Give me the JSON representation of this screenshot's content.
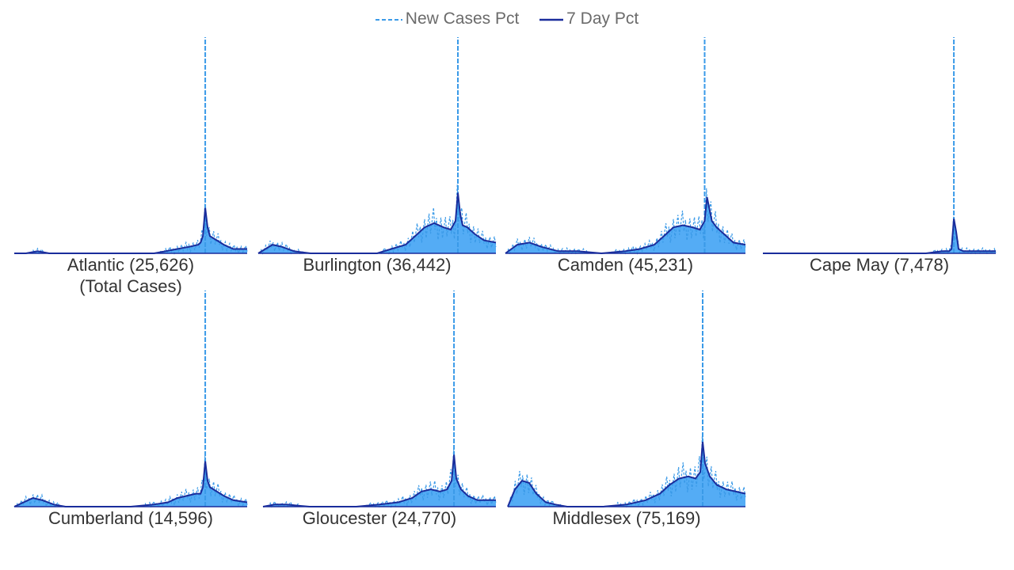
{
  "legend": {
    "dashed_label": "New Cases Pct",
    "solid_label": "7 Day Pct"
  },
  "colors": {
    "new_cases": "#3a9ae8",
    "seven_day": "#1a2d9c",
    "area": "#54acf5"
  },
  "chart_data": [
    {
      "type": "area",
      "county": "Atlantic",
      "label": "Atlantic (25,626)",
      "sublabel": "(Total Cases)",
      "spike_x": 0.82,
      "spike_y": 1.0,
      "peak_7day": 0.21,
      "x": [
        0.0,
        0.05,
        0.1,
        0.15,
        0.2,
        0.3,
        0.4,
        0.5,
        0.6,
        0.65,
        0.7,
        0.75,
        0.79,
        0.8,
        0.81,
        0.82,
        0.83,
        0.84,
        0.87,
        0.9,
        0.94,
        1.0
      ],
      "y": [
        0.0,
        0.0,
        0.01,
        0.0,
        0.0,
        0.0,
        0.0,
        0.0,
        0.0,
        0.01,
        0.02,
        0.03,
        0.04,
        0.05,
        0.08,
        0.21,
        0.12,
        0.08,
        0.06,
        0.04,
        0.02,
        0.02
      ]
    },
    {
      "type": "area",
      "county": "Burlington",
      "label": "Burlington (36,442)",
      "spike_x": 0.84,
      "spike_y": 1.0,
      "peak_7day": 0.28,
      "x": [
        0.0,
        0.03,
        0.06,
        0.1,
        0.15,
        0.22,
        0.3,
        0.4,
        0.5,
        0.56,
        0.62,
        0.66,
        0.7,
        0.74,
        0.78,
        0.81,
        0.83,
        0.84,
        0.85,
        0.86,
        0.88,
        0.91,
        0.95,
        1.0
      ],
      "y": [
        0.0,
        0.02,
        0.04,
        0.03,
        0.01,
        0.0,
        0.0,
        0.0,
        0.0,
        0.02,
        0.04,
        0.08,
        0.12,
        0.14,
        0.12,
        0.11,
        0.15,
        0.28,
        0.18,
        0.13,
        0.12,
        0.09,
        0.06,
        0.05
      ]
    },
    {
      "type": "area",
      "county": "Camden",
      "label": "Camden (45,231)",
      "spike_x": 0.83,
      "spike_y": 1.0,
      "peak_7day": 0.26,
      "x": [
        0.0,
        0.05,
        0.1,
        0.15,
        0.22,
        0.3,
        0.4,
        0.5,
        0.56,
        0.62,
        0.66,
        0.7,
        0.74,
        0.78,
        0.81,
        0.83,
        0.84,
        0.86,
        0.88,
        0.91,
        0.95,
        1.0
      ],
      "y": [
        0.0,
        0.04,
        0.05,
        0.03,
        0.01,
        0.01,
        0.0,
        0.01,
        0.02,
        0.04,
        0.08,
        0.12,
        0.13,
        0.12,
        0.11,
        0.15,
        0.26,
        0.15,
        0.12,
        0.09,
        0.05,
        0.04
      ]
    },
    {
      "type": "area",
      "county": "Cape May",
      "label": "Cape May (7,478)",
      "spike_x": 0.82,
      "spike_y": 1.0,
      "peak_7day": 0.16,
      "x": [
        0.0,
        0.1,
        0.2,
        0.3,
        0.4,
        0.5,
        0.6,
        0.7,
        0.77,
        0.8,
        0.81,
        0.82,
        0.83,
        0.84,
        0.86,
        0.9,
        1.0
      ],
      "y": [
        0.0,
        0.0,
        0.0,
        0.0,
        0.0,
        0.0,
        0.0,
        0.0,
        0.01,
        0.01,
        0.02,
        0.16,
        0.1,
        0.02,
        0.01,
        0.01,
        0.01
      ]
    },
    {
      "type": "area",
      "county": "Cumberland",
      "label": "Cumberland (14,596)",
      "spike_x": 0.82,
      "spike_y": 1.0,
      "peak_7day": 0.21,
      "x": [
        0.0,
        0.04,
        0.08,
        0.12,
        0.17,
        0.22,
        0.3,
        0.4,
        0.5,
        0.6,
        0.66,
        0.7,
        0.74,
        0.78,
        0.8,
        0.81,
        0.82,
        0.83,
        0.84,
        0.87,
        0.9,
        0.94,
        1.0
      ],
      "y": [
        0.0,
        0.02,
        0.04,
        0.03,
        0.01,
        0.0,
        0.0,
        0.0,
        0.0,
        0.01,
        0.02,
        0.04,
        0.05,
        0.06,
        0.06,
        0.09,
        0.21,
        0.12,
        0.09,
        0.07,
        0.05,
        0.03,
        0.02
      ]
    },
    {
      "type": "area",
      "county": "Gloucester",
      "label": "Gloucester (24,770)",
      "spike_x": 0.82,
      "spike_y": 1.0,
      "peak_7day": 0.24,
      "x": [
        0.0,
        0.05,
        0.1,
        0.2,
        0.3,
        0.4,
        0.5,
        0.58,
        0.64,
        0.68,
        0.72,
        0.76,
        0.79,
        0.81,
        0.82,
        0.83,
        0.85,
        0.88,
        0.92,
        0.96,
        1.0
      ],
      "y": [
        0.0,
        0.01,
        0.01,
        0.0,
        0.0,
        0.0,
        0.01,
        0.02,
        0.04,
        0.07,
        0.08,
        0.07,
        0.08,
        0.12,
        0.24,
        0.13,
        0.08,
        0.05,
        0.03,
        0.03,
        0.03
      ]
    },
    {
      "type": "area",
      "county": "Middlesex",
      "label": "Middlesex (75,169)",
      "spike_x": 0.82,
      "spike_y": 1.0,
      "peak_7day": 0.3,
      "x": [
        0.0,
        0.03,
        0.06,
        0.09,
        0.12,
        0.16,
        0.2,
        0.25,
        0.3,
        0.4,
        0.5,
        0.58,
        0.64,
        0.68,
        0.72,
        0.76,
        0.79,
        0.81,
        0.82,
        0.83,
        0.85,
        0.88,
        0.92,
        0.96,
        1.0
      ],
      "y": [
        0.0,
        0.08,
        0.12,
        0.11,
        0.06,
        0.02,
        0.01,
        0.0,
        0.0,
        0.0,
        0.01,
        0.03,
        0.06,
        0.1,
        0.13,
        0.14,
        0.13,
        0.16,
        0.3,
        0.2,
        0.14,
        0.1,
        0.08,
        0.07,
        0.06
      ]
    }
  ]
}
